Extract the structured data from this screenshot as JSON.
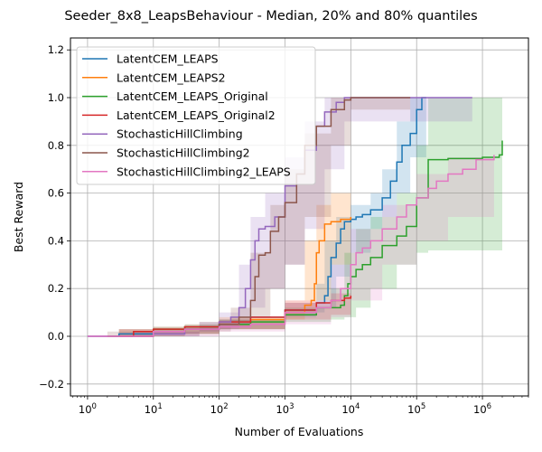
{
  "chart_data": {
    "type": "line",
    "title": "Seeder_8x8_LeapsBehaviour - Median, 20% and 80% quantiles",
    "xlabel": "Number of Evaluations",
    "ylabel": "Best Reward",
    "xscale": "log",
    "xlim": [
      0.55,
      5000000
    ],
    "ylim": [
      -0.25,
      1.25
    ],
    "x_ticks": [
      {
        "v": 1,
        "base": "10",
        "exp": "0"
      },
      {
        "v": 10,
        "base": "10",
        "exp": "1"
      },
      {
        "v": 100,
        "base": "10",
        "exp": "2"
      },
      {
        "v": 1000,
        "base": "10",
        "exp": "3"
      },
      {
        "v": 10000,
        "base": "10",
        "exp": "4"
      },
      {
        "v": 100000,
        "base": "10",
        "exp": "5"
      },
      {
        "v": 1000000,
        "base": "10",
        "exp": "6"
      }
    ],
    "y_ticks": [
      {
        "v": -0.2,
        "label": "−0.2"
      },
      {
        "v": 0.0,
        "label": "0.0"
      },
      {
        "v": 0.2,
        "label": "0.2"
      },
      {
        "v": 0.4,
        "label": "0.4"
      },
      {
        "v": 0.6,
        "label": "0.6"
      },
      {
        "v": 0.8,
        "label": "0.8"
      },
      {
        "v": 1.0,
        "label": "1.0"
      },
      {
        "v": 1.2,
        "label": "1.2"
      }
    ],
    "grid": true,
    "legend_position": "top-left",
    "series": [
      {
        "name": "LatentCEM_LEAPS",
        "color": "#1f77b4",
        "median": [
          [
            1,
            0
          ],
          [
            3,
            0.01
          ],
          [
            10,
            0.02
          ],
          [
            30,
            0.03
          ],
          [
            100,
            0.05
          ],
          [
            300,
            0.08
          ],
          [
            1000,
            0.11
          ],
          [
            3000,
            0.14
          ],
          [
            4000,
            0.17
          ],
          [
            4500,
            0.25
          ],
          [
            5000,
            0.33
          ],
          [
            6000,
            0.39
          ],
          [
            7000,
            0.45
          ],
          [
            8000,
            0.48
          ],
          [
            10000,
            0.49
          ],
          [
            12000,
            0.5
          ],
          [
            15000,
            0.51
          ],
          [
            20000,
            0.53
          ],
          [
            30000,
            0.58
          ],
          [
            40000,
            0.65
          ],
          [
            50000,
            0.73
          ],
          [
            60000,
            0.8
          ],
          [
            80000,
            0.85
          ],
          [
            100000,
            0.95
          ],
          [
            120000,
            1.0
          ],
          [
            140000,
            1.0
          ]
        ],
        "band": [
          [
            3,
            0,
            0.03
          ],
          [
            30,
            0.01,
            0.05
          ],
          [
            100,
            0.03,
            0.07
          ],
          [
            1000,
            0.08,
            0.14
          ],
          [
            3000,
            0.1,
            0.22
          ],
          [
            4000,
            0.12,
            0.4
          ],
          [
            6000,
            0.25,
            0.5
          ],
          [
            10000,
            0.35,
            0.55
          ],
          [
            20000,
            0.45,
            0.6
          ],
          [
            30000,
            0.5,
            0.7
          ],
          [
            50000,
            0.6,
            0.9
          ],
          [
            80000,
            0.75,
            1.0
          ],
          [
            140000,
            0.95,
            1.0
          ]
        ]
      },
      {
        "name": "LatentCEM_LEAPS2",
        "color": "#ff7f0e",
        "median": [
          [
            3,
            0
          ],
          [
            10,
            0.02
          ],
          [
            30,
            0.03
          ],
          [
            100,
            0.05
          ],
          [
            300,
            0.07
          ],
          [
            1000,
            0.1
          ],
          [
            2000,
            0.13
          ],
          [
            2500,
            0.15
          ],
          [
            2800,
            0.22
          ],
          [
            3000,
            0.35
          ],
          [
            3300,
            0.4
          ],
          [
            4000,
            0.47
          ],
          [
            5000,
            0.48
          ],
          [
            7000,
            0.49
          ],
          [
            10000,
            0.5
          ]
        ],
        "band": [
          [
            3,
            0,
            0.03
          ],
          [
            30,
            0.01,
            0.05
          ],
          [
            100,
            0.03,
            0.08
          ],
          [
            1000,
            0.07,
            0.15
          ],
          [
            2000,
            0.1,
            0.4
          ],
          [
            3000,
            0.15,
            0.55
          ],
          [
            5000,
            0.3,
            0.6
          ],
          [
            10000,
            0.4,
            0.6
          ]
        ]
      },
      {
        "name": "LatentCEM_LEAPS_Original",
        "color": "#2ca02c",
        "median": [
          [
            10,
            0.03
          ],
          [
            30,
            0.04
          ],
          [
            100,
            0.05
          ],
          [
            300,
            0.06
          ],
          [
            1000,
            0.09
          ],
          [
            3000,
            0.12
          ],
          [
            7000,
            0.13
          ],
          [
            8000,
            0.17
          ],
          [
            9000,
            0.22
          ],
          [
            10000,
            0.25
          ],
          [
            12000,
            0.28
          ],
          [
            15000,
            0.3
          ],
          [
            20000,
            0.33
          ],
          [
            30000,
            0.38
          ],
          [
            50000,
            0.42
          ],
          [
            70000,
            0.46
          ],
          [
            100000,
            0.58
          ],
          [
            150000,
            0.74
          ],
          [
            300000,
            0.745
          ],
          [
            1000000,
            0.75
          ],
          [
            1800000,
            0.76
          ],
          [
            2000000,
            0.82
          ]
        ],
        "band": [
          [
            10,
            0.01,
            0.04
          ],
          [
            100,
            0.03,
            0.07
          ],
          [
            1000,
            0.06,
            0.12
          ],
          [
            5000,
            0.07,
            0.2
          ],
          [
            8000,
            0.08,
            0.35
          ],
          [
            12000,
            0.12,
            0.45
          ],
          [
            20000,
            0.2,
            0.5
          ],
          [
            50000,
            0.3,
            0.6
          ],
          [
            100000,
            0.35,
            0.8
          ],
          [
            150000,
            0.36,
            1.0
          ],
          [
            2000000,
            0.36,
            1.0
          ]
        ]
      },
      {
        "name": "LatentCEM_LEAPS_Original2",
        "color": "#d62728",
        "median": [
          [
            3,
            0
          ],
          [
            5,
            0.02
          ],
          [
            10,
            0.03
          ],
          [
            30,
            0.04
          ],
          [
            100,
            0.06
          ],
          [
            300,
            0.08
          ],
          [
            1000,
            0.11
          ],
          [
            3000,
            0.14
          ],
          [
            5000,
            0.15
          ],
          [
            8000,
            0.16
          ],
          [
            10000,
            0.17
          ]
        ],
        "band": [
          [
            3,
            0,
            0.03
          ],
          [
            10,
            0.01,
            0.04
          ],
          [
            100,
            0.03,
            0.07
          ],
          [
            1000,
            0.07,
            0.14
          ],
          [
            5000,
            0.09,
            0.18
          ],
          [
            10000,
            0.1,
            0.2
          ]
        ]
      },
      {
        "name": "StochasticHillClimbing",
        "color": "#9467bd",
        "median": [
          [
            1,
            0
          ],
          [
            5,
            0
          ],
          [
            10,
            0.01
          ],
          [
            30,
            0.03
          ],
          [
            100,
            0.06
          ],
          [
            150,
            0.08
          ],
          [
            200,
            0.12
          ],
          [
            250,
            0.2
          ],
          [
            300,
            0.32
          ],
          [
            350,
            0.4
          ],
          [
            400,
            0.45
          ],
          [
            500,
            0.46
          ],
          [
            700,
            0.5
          ],
          [
            1000,
            0.63
          ],
          [
            1500,
            0.68
          ],
          [
            2000,
            0.78
          ],
          [
            3000,
            0.88
          ],
          [
            4000,
            0.94
          ],
          [
            6000,
            0.98
          ],
          [
            8000,
            1.0
          ],
          [
            700000,
            1.0
          ]
        ],
        "band": [
          [
            5,
            0,
            0.02
          ],
          [
            50,
            0.02,
            0.06
          ],
          [
            100,
            0.03,
            0.1
          ],
          [
            200,
            0.05,
            0.3
          ],
          [
            300,
            0.12,
            0.5
          ],
          [
            500,
            0.2,
            0.6
          ],
          [
            1000,
            0.3,
            0.75
          ],
          [
            2000,
            0.45,
            0.9
          ],
          [
            4000,
            0.7,
            1.0
          ],
          [
            8000,
            0.9,
            1.0
          ],
          [
            700000,
            1.0,
            1.0
          ]
        ]
      },
      {
        "name": "StochasticHillClimbing2",
        "color": "#8c564b",
        "median": [
          [
            2,
            0
          ],
          [
            10,
            0.02
          ],
          [
            30,
            0.03
          ],
          [
            100,
            0.05
          ],
          [
            200,
            0.08
          ],
          [
            300,
            0.15
          ],
          [
            350,
            0.25
          ],
          [
            400,
            0.34
          ],
          [
            500,
            0.35
          ],
          [
            600,
            0.44
          ],
          [
            800,
            0.5
          ],
          [
            1000,
            0.56
          ],
          [
            1500,
            0.68
          ],
          [
            2000,
            0.8
          ],
          [
            3000,
            0.88
          ],
          [
            5000,
            0.95
          ],
          [
            8000,
            0.99
          ],
          [
            10000,
            1.0
          ],
          [
            80000,
            1.0
          ]
        ],
        "band": [
          [
            2,
            0,
            0.02
          ],
          [
            50,
            0.02,
            0.06
          ],
          [
            150,
            0.04,
            0.12
          ],
          [
            300,
            0.08,
            0.35
          ],
          [
            600,
            0.2,
            0.55
          ],
          [
            1000,
            0.3,
            0.7
          ],
          [
            2000,
            0.5,
            0.85
          ],
          [
            5000,
            0.8,
            1.0
          ],
          [
            10000,
            0.95,
            1.0
          ],
          [
            80000,
            1.0,
            1.0
          ]
        ]
      },
      {
        "name": "StochasticHillClimbing2_LEAPS",
        "color": "#e377c2",
        "median": [
          [
            1,
            0
          ],
          [
            10,
            0.02
          ],
          [
            30,
            0.03
          ],
          [
            100,
            0.04
          ],
          [
            300,
            0.05
          ],
          [
            1000,
            0.1
          ],
          [
            3000,
            0.12
          ],
          [
            5000,
            0.15
          ],
          [
            7000,
            0.2
          ],
          [
            10000,
            0.3
          ],
          [
            12000,
            0.35
          ],
          [
            15000,
            0.37
          ],
          [
            20000,
            0.4
          ],
          [
            30000,
            0.45
          ],
          [
            50000,
            0.5
          ],
          [
            70000,
            0.55
          ],
          [
            100000,
            0.58
          ],
          [
            150000,
            0.62
          ],
          [
            200000,
            0.65
          ],
          [
            300000,
            0.68
          ],
          [
            500000,
            0.7
          ],
          [
            800000,
            0.74
          ],
          [
            1500000,
            0.76
          ]
        ],
        "band": [
          [
            10,
            0,
            0.03
          ],
          [
            100,
            0.02,
            0.06
          ],
          [
            1000,
            0.05,
            0.15
          ],
          [
            5000,
            0.08,
            0.3
          ],
          [
            10000,
            0.15,
            0.45
          ],
          [
            30000,
            0.3,
            0.55
          ],
          [
            100000,
            0.4,
            0.68
          ],
          [
            300000,
            0.5,
            0.75
          ],
          [
            1500000,
            0.6,
            0.8
          ]
        ]
      }
    ]
  }
}
